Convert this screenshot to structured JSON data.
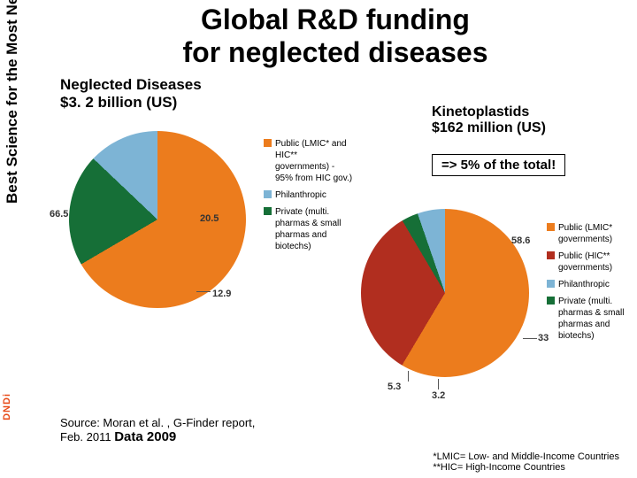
{
  "sidebar": {
    "text": "Best Science for the Most Neglected",
    "logo": "DNDi"
  },
  "title_l1": "Global R&D funding",
  "title_l2": "for neglected diseases",
  "chart1": {
    "title_l1": "Neglected Diseases",
    "title_l2": "$3. 2 billion (US)",
    "slices": [
      {
        "label": "66.5",
        "value": 66.5,
        "color": "#ec7c1d"
      },
      {
        "label": "20.5",
        "value": 20.5,
        "color": "#166f37"
      },
      {
        "label": "12.9",
        "value": 12.9,
        "color": "#7db4d5"
      }
    ],
    "legend": [
      {
        "color": "#ec7c1d",
        "text": "Public (LMIC* and HIC** governments) - 95% from HIC gov.)"
      },
      {
        "color": "#7db4d5",
        "text": "Philanthropic"
      },
      {
        "color": "#166f37",
        "text": "Private (multi. pharmas & small pharmas and biotechs)"
      }
    ]
  },
  "chart2": {
    "title_l1": "Kinetoplastids",
    "title_l2": "$162 million (US)",
    "callout": "=> 5% of the total!",
    "slices": [
      {
        "label": "58.6",
        "value": 58.6,
        "color": "#ec7c1d"
      },
      {
        "label": "33",
        "value": 33.0,
        "color": "#b12e1f"
      },
      {
        "label": "3.2",
        "value": 3.2,
        "color": "#166f37"
      },
      {
        "label": "5.3",
        "value": 5.3,
        "color": "#7db4d5"
      }
    ],
    "legend": [
      {
        "color": "#ec7c1d",
        "text": "Public (LMIC* governments)"
      },
      {
        "color": "#b12e1f",
        "text": "Public (HIC** governments)"
      },
      {
        "color": "#7db4d5",
        "text": "Philanthropic"
      },
      {
        "color": "#166f37",
        "text": "Private (multi. pharmas & small pharmas and biotechs)"
      }
    ]
  },
  "source_l1": "Source: Moran et al. , G-Finder report,",
  "source_l2a": "Feb. 2011 ",
  "source_l2b": "Data 2009",
  "footnote_l1": "*LMIC= Low- and Middle-Income Countries",
  "footnote_l2": "**HIC= High-Income Countries",
  "style": {
    "pie1_diameter": 200,
    "pie2_diameter": 190,
    "bg": "#ffffff"
  }
}
